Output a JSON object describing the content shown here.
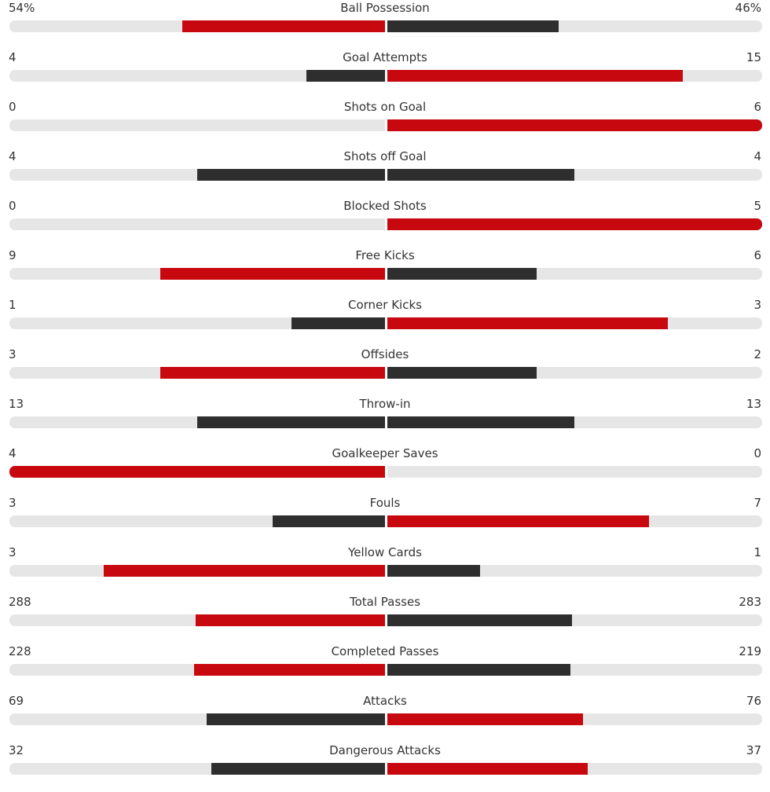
{
  "colors": {
    "higher": "#c8080f",
    "lower": "#2e2e2e",
    "track": "#e6e6e6"
  },
  "stats": [
    {
      "label": "Ball Possession",
      "home": "54%",
      "away": "46%"
    },
    {
      "label": "Goal Attempts",
      "home": "4",
      "away": "15"
    },
    {
      "label": "Shots on Goal",
      "home": "0",
      "away": "6"
    },
    {
      "label": "Shots off Goal",
      "home": "4",
      "away": "4"
    },
    {
      "label": "Blocked Shots",
      "home": "0",
      "away": "5"
    },
    {
      "label": "Free Kicks",
      "home": "9",
      "away": "6"
    },
    {
      "label": "Corner Kicks",
      "home": "1",
      "away": "3"
    },
    {
      "label": "Offsides",
      "home": "3",
      "away": "2"
    },
    {
      "label": "Throw-in",
      "home": "13",
      "away": "13"
    },
    {
      "label": "Goalkeeper Saves",
      "home": "4",
      "away": "0"
    },
    {
      "label": "Fouls",
      "home": "3",
      "away": "7"
    },
    {
      "label": "Yellow Cards",
      "home": "3",
      "away": "1"
    },
    {
      "label": "Total Passes",
      "home": "288",
      "away": "283"
    },
    {
      "label": "Completed Passes",
      "home": "228",
      "away": "219"
    },
    {
      "label": "Attacks",
      "home": "69",
      "away": "76"
    },
    {
      "label": "Dangerous Attacks",
      "home": "32",
      "away": "37"
    }
  ]
}
